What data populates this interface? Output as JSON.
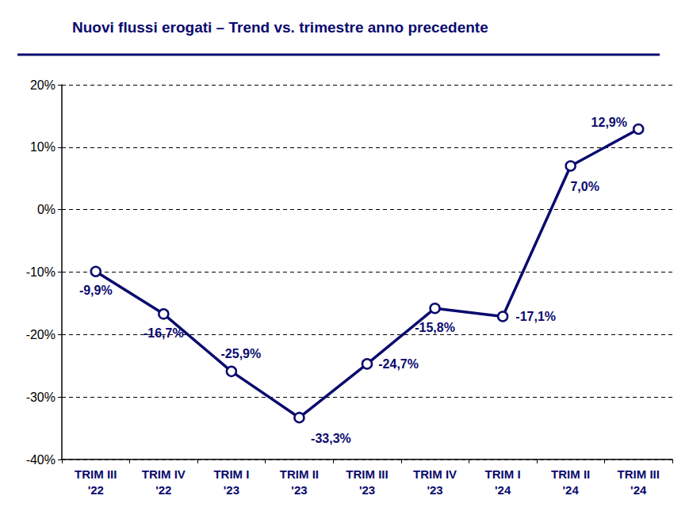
{
  "chart_data": {
    "type": "line",
    "title": "Nuovi flussi erogati – Trend vs. trimestre anno precedente",
    "categories": [
      "TRIM III '22",
      "TRIM IV '22",
      "TRIM I '23",
      "TRIM II '23",
      "TRIM III '23",
      "TRIM IV '23",
      "TRIM I '24",
      "TRIM II '24",
      "TRIM III '24"
    ],
    "values": [
      -9.9,
      -16.7,
      -25.9,
      -33.3,
      -24.7,
      -15.8,
      -17.1,
      7.0,
      12.9
    ],
    "value_labels": [
      "-9,9%",
      "-16,7%",
      "-25,9%",
      "-33,3%",
      "-24,7%",
      "-15,8%",
      "-17,1%",
      "7,0%",
      "12,9%"
    ],
    "color": "#0a0a6e",
    "marker": "circle",
    "data_labels": true,
    "grid": true,
    "ylim": [
      -40,
      20
    ],
    "yticks": [
      {
        "value": -40,
        "label": "-40%"
      },
      {
        "value": -30,
        "label": "-30%"
      },
      {
        "value": -20,
        "label": "-20%"
      },
      {
        "value": -10,
        "label": "-10%"
      },
      {
        "value": 0,
        "label": "0%"
      },
      {
        "value": 10,
        "label": "10%"
      },
      {
        "value": 20,
        "label": "20%"
      }
    ]
  }
}
